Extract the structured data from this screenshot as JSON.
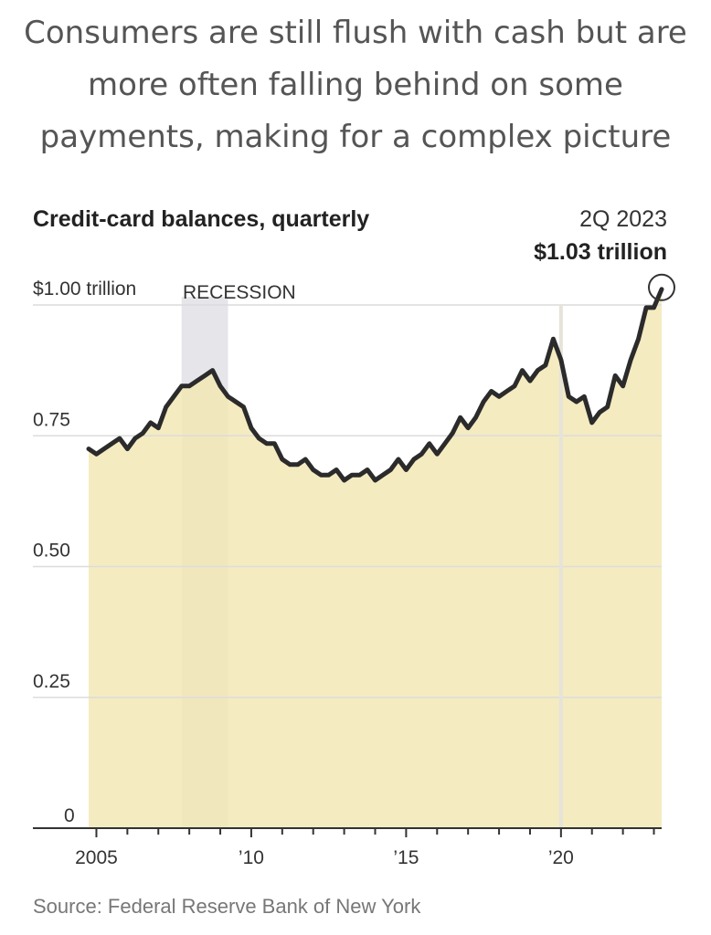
{
  "headline": {
    "lines": [
      "Consumers are still flush with cash but are",
      "more often falling behind on some",
      "payments, making for a complex picture"
    ]
  },
  "source": "Source: Federal Reserve Bank of New York",
  "colors": {
    "area": "#f3e6b3",
    "line": "#2b2b2b",
    "recession": "#e6e6ea",
    "grid": "#dcdcdc"
  },
  "chart_data": {
    "type": "area",
    "title": "Credit-card balances, quarterly",
    "unit_label": "$1.00 trillion",
    "recession_label": "RECESSION",
    "recession": [
      2007.75,
      2009.25
    ],
    "callout": {
      "date": "2Q 2023",
      "value": "$1.03 trillion",
      "x": 2023.25,
      "y": 1.03
    },
    "ylim": [
      0,
      1.0
    ],
    "yticks": [
      {
        "value": 0,
        "label": "0"
      },
      {
        "value": 0.25,
        "label": "0.25"
      },
      {
        "value": 0.5,
        "label": "0.50"
      },
      {
        "value": 0.75,
        "label": "0.75"
      },
      {
        "value": 1.0,
        "label": "$1.00 trillion"
      }
    ],
    "xticks": [
      {
        "value": 2005,
        "label": "2005"
      },
      {
        "value": 2010,
        "label": "’10"
      },
      {
        "value": 2015,
        "label": "’15"
      },
      {
        "value": 2020,
        "label": "’20"
      }
    ],
    "xlim": [
      2004.75,
      2023.25
    ],
    "series": [
      {
        "x": [
          2004.75,
          2005.0,
          2005.25,
          2005.5,
          2005.75,
          2006.0,
          2006.25,
          2006.5,
          2006.75,
          2007.0,
          2007.25,
          2007.5,
          2007.75,
          2008.0,
          2008.25,
          2008.5,
          2008.75,
          2009.0,
          2009.25,
          2009.5,
          2009.75,
          2010.0,
          2010.25,
          2010.5,
          2010.75,
          2011.0,
          2011.25,
          2011.5,
          2011.75,
          2012.0,
          2012.25,
          2012.5,
          2012.75,
          2013.0,
          2013.25,
          2013.5,
          2013.75,
          2014.0,
          2014.25,
          2014.5,
          2014.75,
          2015.0,
          2015.25,
          2015.5,
          2015.75,
          2016.0,
          2016.25,
          2016.5,
          2016.75,
          2017.0,
          2017.25,
          2017.5,
          2017.75,
          2018.0,
          2018.25,
          2018.5,
          2018.75,
          2019.0,
          2019.25,
          2019.5,
          2019.75,
          2020.0,
          2020.25,
          2020.5,
          2020.75,
          2021.0,
          2021.25,
          2021.5,
          2021.75,
          2022.0,
          2022.25,
          2022.5,
          2022.75,
          2023.0,
          2023.25
        ],
        "values": [
          0.725,
          0.715,
          0.725,
          0.735,
          0.745,
          0.725,
          0.745,
          0.755,
          0.775,
          0.765,
          0.805,
          0.825,
          0.845,
          0.845,
          0.855,
          0.865,
          0.875,
          0.845,
          0.825,
          0.815,
          0.805,
          0.765,
          0.745,
          0.735,
          0.735,
          0.705,
          0.695,
          0.695,
          0.705,
          0.685,
          0.675,
          0.675,
          0.685,
          0.665,
          0.675,
          0.675,
          0.685,
          0.665,
          0.675,
          0.685,
          0.705,
          0.685,
          0.705,
          0.715,
          0.735,
          0.715,
          0.735,
          0.755,
          0.785,
          0.765,
          0.785,
          0.815,
          0.835,
          0.825,
          0.835,
          0.845,
          0.875,
          0.855,
          0.875,
          0.885,
          0.935,
          0.895,
          0.825,
          0.815,
          0.825,
          0.775,
          0.795,
          0.805,
          0.865,
          0.845,
          0.895,
          0.935,
          0.995,
          0.995,
          1.03
        ]
      }
    ]
  }
}
